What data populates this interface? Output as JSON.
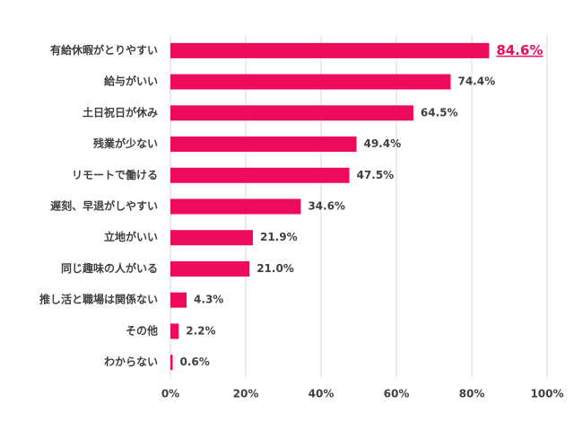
{
  "chart_data": {
    "type": "bar",
    "orientation": "horizontal",
    "categories": [
      "有給休暇がとりやすい",
      "給与がいい",
      "土日祝日が休み",
      "残業が少ない",
      "リモートで働ける",
      "遅刻、早退がしやすい",
      "立地がいい",
      "同じ趣味の人がいる",
      "推し活と職場は関係ない",
      "その他",
      "わからない"
    ],
    "values": [
      84.6,
      74.4,
      64.5,
      49.4,
      47.5,
      34.6,
      21.9,
      21.0,
      4.3,
      2.2,
      0.6
    ],
    "value_labels": [
      "84.6%",
      "74.4%",
      "64.5%",
      "49.4%",
      "47.5%",
      "34.6%",
      "21.9%",
      "21.0%",
      "4.3%",
      "2.2%",
      "0.6%"
    ],
    "color": "#ee0a5c",
    "highlight_index": 0,
    "xlim": [
      0,
      100
    ],
    "xticks": [
      {
        "value": 0,
        "label": "0%"
      },
      {
        "value": 20,
        "label": "20%"
      },
      {
        "value": 40,
        "label": "40%"
      },
      {
        "value": 60,
        "label": "60%"
      },
      {
        "value": 80,
        "label": "80%"
      },
      {
        "value": 100,
        "label": "100%"
      }
    ],
    "grid": true
  }
}
